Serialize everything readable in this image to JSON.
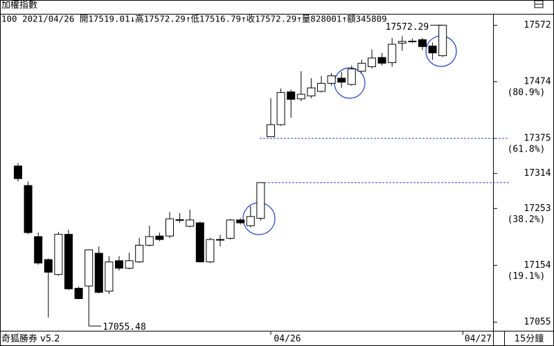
{
  "chart_data": {
    "type": "candlestick",
    "title": "加權指數",
    "info": "100 2021/04/26 開17519.01↓高17572.29↑低17516.79↑收17572.29↑量828001↑額345809",
    "categories": [
      null,
      null,
      null,
      null,
      null,
      null,
      null,
      null,
      null,
      null,
      null,
      null,
      null,
      null,
      null,
      null,
      null,
      null,
      null,
      null,
      null,
      null,
      null,
      null,
      null,
      "04/26",
      null,
      null,
      null,
      null,
      null,
      null,
      null,
      null,
      null,
      null,
      null,
      null,
      null,
      null,
      null,
      null,
      null
    ],
    "next_label": "04/27",
    "open": [
      17327,
      17293,
      17204,
      17164,
      17138,
      17208,
      17114,
      17118,
      17175,
      17109,
      17162,
      17149,
      17160,
      17189,
      17205,
      17205,
      17233,
      17222,
      17228,
      17160,
      17198,
      17201,
      17233,
      17223,
      17236,
      17378,
      17399,
      17456,
      17444,
      17449,
      17457,
      17471,
      17480,
      17469,
      17492,
      17500,
      17516,
      17507,
      17541,
      17544,
      17547,
      17536,
      17519.01
    ],
    "high": [
      17332,
      17300,
      17211,
      17166,
      17212,
      17216,
      17117,
      17182,
      17187,
      17170,
      17170,
      17176,
      17202,
      17223,
      17211,
      17247,
      17245,
      17251,
      17230,
      17202,
      17207,
      17235,
      17236,
      17257,
      17298,
      17445,
      17462,
      17460,
      17492,
      17480,
      17484,
      17489,
      17491,
      17502,
      17512,
      17530,
      17524,
      17550,
      17553,
      17549,
      17550,
      17542,
      17572.29
    ],
    "low": [
      17300,
      17208,
      17155,
      17063,
      17136,
      17111,
      17095,
      17055.48,
      17105,
      17104,
      17145,
      17147,
      17158,
      17187,
      17196,
      17202,
      17228,
      17220,
      17159,
      17158,
      17187,
      17199,
      17225,
      17220,
      17232,
      17378,
      17397,
      17411,
      17440,
      17445,
      17455,
      17467,
      17463,
      17467,
      17490,
      17497,
      17502,
      17500,
      17528,
      17541,
      17529,
      17512,
      17516.79
    ],
    "close": [
      17305,
      17211,
      17158,
      17142,
      17208,
      17113,
      17096,
      17181,
      17107,
      17160,
      17149,
      17162,
      17189,
      17204,
      17199,
      17235,
      17233.5,
      17233,
      17160,
      17199,
      17199,
      17233,
      17228,
      17239,
      17298,
      17399,
      17455,
      17443,
      17452,
      17463,
      17471,
      17484,
      17473,
      17496,
      17506,
      17515,
      17506,
      17539,
      17544,
      17544.5,
      17535,
      17524,
      17572.29
    ],
    "up_color": "#ffffff",
    "down_color": "#000000",
    "ylim": [
      17040,
      17592
    ],
    "yticks": [
      17572,
      17474,
      17375,
      17314,
      17253,
      17154,
      17055
    ],
    "ratio_labels": [
      {
        "value": 17474,
        "label": "(80.9%)"
      },
      {
        "value": 17375,
        "label": "(61.8%)"
      },
      {
        "value": 17253,
        "label": "(38.2%)"
      },
      {
        "value": 17154,
        "label": "(19.1%)"
      }
    ],
    "levels": [
      17375,
      17298
    ],
    "level_color": "#1f3fd6",
    "annotations": [
      "17572.29",
      "17055.48"
    ],
    "brand": "奇狐勝券 v5.2",
    "period": "15分鐘"
  }
}
